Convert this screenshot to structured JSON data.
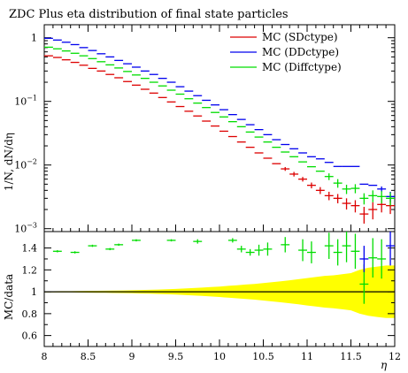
{
  "chart_data": [
    {
      "type": "scatter",
      "title": "ZDC Plus eta distribution of final state particles",
      "xlabel": "",
      "ylabel": "1/N, dN/dη",
      "yscale": "log",
      "ylim": [
        0.0009,
        1.6
      ],
      "y_ticks": [
        {
          "value": 0.001,
          "base": "10",
          "exp": "−3"
        },
        {
          "value": 0.01,
          "base": "10",
          "exp": "−2"
        },
        {
          "value": 0.1,
          "base": "10",
          "exp": "−1"
        },
        {
          "value": 1,
          "base": "1",
          "exp": ""
        }
      ],
      "legend_position": "top-right",
      "series": [
        {
          "name": "MC (SDctype)",
          "color": "#dd0000",
          "x": [
            8.05,
            8.15,
            8.25,
            8.35,
            8.45,
            8.55,
            8.65,
            8.75,
            8.85,
            8.95,
            9.05,
            9.15,
            9.25,
            9.35,
            9.45,
            9.55,
            9.65,
            9.75,
            9.85,
            9.95,
            10.05,
            10.15,
            10.25,
            10.35,
            10.45,
            10.55,
            10.65,
            10.75,
            10.85,
            10.95,
            11.05,
            11.15,
            11.25,
            11.35,
            11.45,
            11.55,
            11.65,
            11.75,
            11.85,
            11.95
          ],
          "y": [
            0.52,
            0.49,
            0.45,
            0.41,
            0.37,
            0.33,
            0.3,
            0.265,
            0.235,
            0.205,
            0.18,
            0.155,
            0.135,
            0.115,
            0.098,
            0.083,
            0.07,
            0.059,
            0.049,
            0.041,
            0.034,
            0.028,
            0.023,
            0.019,
            0.0155,
            0.0128,
            0.0105,
            0.0087,
            0.0072,
            0.006,
            0.0048,
            0.004,
            0.0033,
            0.003,
            0.0025,
            0.0023,
            0.0017,
            0.002,
            0.0024,
            0.0023
          ],
          "yerr": [
            0,
            0,
            0,
            0,
            0,
            0,
            0,
            0,
            0,
            0,
            0,
            0,
            0,
            0,
            0,
            0,
            0,
            0,
            0,
            0,
            0,
            0,
            0,
            0,
            0,
            0,
            0,
            0.0006,
            0.0006,
            0.0005,
            0.0005,
            0.0005,
            0.0005,
            0.0005,
            0.0005,
            0.0005,
            0.0005,
            0.0006,
            0.0006,
            0.0006
          ]
        },
        {
          "name": "MC (DDctype)",
          "color": "#0000ee",
          "x": [
            8.05,
            8.15,
            8.25,
            8.35,
            8.45,
            8.55,
            8.65,
            8.75,
            8.85,
            8.95,
            9.05,
            9.15,
            9.25,
            9.35,
            9.45,
            9.55,
            9.65,
            9.75,
            9.85,
            9.95,
            10.05,
            10.15,
            10.25,
            10.35,
            10.45,
            10.55,
            10.65,
            10.75,
            10.85,
            10.95,
            11.05,
            11.15,
            11.25,
            11.35,
            11.45,
            11.55,
            11.65,
            11.75,
            11.85,
            11.95
          ],
          "y": [
            0.98,
            0.92,
            0.85,
            0.78,
            0.7,
            0.63,
            0.56,
            0.5,
            0.44,
            0.39,
            0.345,
            0.3,
            0.265,
            0.23,
            0.2,
            0.17,
            0.145,
            0.123,
            0.104,
            0.088,
            0.074,
            0.062,
            0.052,
            0.043,
            0.036,
            0.03,
            0.025,
            0.021,
            0.018,
            0.0155,
            0.0135,
            0.0125,
            0.011,
            0.0095,
            0.0095,
            0.0095,
            0.005,
            0.0048,
            0.0042,
            0.0032
          ],
          "yerr": [
            0,
            0,
            0,
            0,
            0,
            0,
            0,
            0,
            0,
            0,
            0,
            0,
            0,
            0,
            0,
            0,
            0,
            0,
            0,
            0,
            0,
            0,
            0,
            0,
            0,
            0,
            0,
            0,
            0,
            0,
            0,
            0,
            0,
            0,
            0,
            0,
            0,
            0,
            0.0004,
            0.0006
          ]
        },
        {
          "name": "MC (Diffctype)",
          "color": "#00dd00",
          "x": [
            8.05,
            8.15,
            8.25,
            8.35,
            8.45,
            8.55,
            8.65,
            8.75,
            8.85,
            8.95,
            9.05,
            9.15,
            9.25,
            9.35,
            9.45,
            9.55,
            9.65,
            9.75,
            9.85,
            9.95,
            10.05,
            10.15,
            10.25,
            10.35,
            10.45,
            10.55,
            10.65,
            10.75,
            10.85,
            10.95,
            11.05,
            11.15,
            11.25,
            11.35,
            11.45,
            11.55,
            11.65,
            11.75,
            11.85,
            11.95
          ],
          "y": [
            0.71,
            0.67,
            0.62,
            0.57,
            0.52,
            0.47,
            0.42,
            0.375,
            0.335,
            0.295,
            0.26,
            0.23,
            0.2,
            0.175,
            0.15,
            0.13,
            0.11,
            0.094,
            0.08,
            0.067,
            0.057,
            0.048,
            0.04,
            0.033,
            0.0275,
            0.023,
            0.019,
            0.016,
            0.0135,
            0.0112,
            0.0094,
            0.008,
            0.0066,
            0.0052,
            0.0042,
            0.0043,
            0.003,
            0.0033,
            0.0032,
            0.003
          ],
          "yerr": [
            0,
            0,
            0,
            0,
            0,
            0,
            0,
            0,
            0,
            0,
            0,
            0,
            0,
            0,
            0,
            0,
            0,
            0,
            0,
            0,
            0,
            0,
            0,
            0,
            0,
            0,
            0,
            0,
            0,
            0,
            0,
            0,
            0.0008,
            0.0008,
            0.0007,
            0.0007,
            0.0006,
            0.0007,
            0.0007,
            0.0007
          ]
        }
      ]
    },
    {
      "type": "scatter",
      "title": "",
      "xlabel": "η",
      "ylabel": "MC/data",
      "xlim": [
        8,
        12
      ],
      "ylim": [
        0.5,
        1.55
      ],
      "x_ticks": [
        8,
        8.5,
        9,
        9.5,
        10,
        10.5,
        11,
        11.5,
        12
      ],
      "x_tick_labels": [
        "8",
        "8.5",
        "9",
        "9.5",
        "10",
        "10.5",
        "11",
        "11.5",
        "12"
      ],
      "y_ticks": [
        0.6,
        0.8,
        1,
        1.2,
        1.4
      ],
      "y_tick_labels": [
        "0.6",
        "0.8",
        "1",
        "1.2",
        "1.4"
      ],
      "reference_line": 1,
      "band_color": "#ffff00",
      "band_x": [
        8.0,
        8.1,
        8.2,
        8.3,
        8.4,
        8.5,
        8.6,
        8.7,
        8.8,
        8.9,
        9.0,
        9.1,
        9.2,
        9.3,
        9.4,
        9.5,
        9.6,
        9.7,
        9.8,
        9.9,
        10.0,
        10.1,
        10.2,
        10.3,
        10.4,
        10.5,
        10.6,
        10.7,
        10.8,
        10.9,
        11.0,
        11.1,
        11.2,
        11.3,
        11.4,
        11.5,
        11.6,
        11.7,
        11.8,
        11.9,
        12.0
      ],
      "band_half": [
        0.005,
        0.005,
        0.006,
        0.006,
        0.007,
        0.008,
        0.009,
        0.01,
        0.011,
        0.012,
        0.014,
        0.016,
        0.018,
        0.02,
        0.023,
        0.026,
        0.03,
        0.034,
        0.038,
        0.043,
        0.048,
        0.054,
        0.06,
        0.066,
        0.072,
        0.08,
        0.088,
        0.096,
        0.105,
        0.115,
        0.125,
        0.135,
        0.145,
        0.15,
        0.16,
        0.17,
        0.2,
        0.22,
        0.23,
        0.24,
        0.24
      ],
      "series": [
        {
          "name": "MC (Diffctype)",
          "color": "#00dd00",
          "x": [
            8.15,
            8.35,
            8.55,
            8.75,
            8.85,
            9.05,
            9.45,
            9.75,
            10.15,
            10.25,
            10.35,
            10.45,
            10.55,
            10.75,
            10.95,
            11.05,
            11.25,
            11.35,
            11.45,
            11.55,
            11.65,
            11.75,
            11.85
          ],
          "y": [
            1.37,
            1.36,
            1.42,
            1.39,
            1.43,
            1.47,
            1.47,
            1.46,
            1.47,
            1.39,
            1.36,
            1.38,
            1.39,
            1.43,
            1.38,
            1.36,
            1.42,
            1.36,
            1.42,
            1.37,
            1.07,
            1.31,
            1.3
          ],
          "yerr": [
            0.01,
            0.01,
            0.01,
            0.01,
            0.01,
            0.01,
            0.01,
            0.02,
            0.02,
            0.03,
            0.03,
            0.05,
            0.06,
            0.07,
            0.1,
            0.1,
            0.12,
            0.12,
            0.15,
            0.16,
            0.18,
            0.18,
            0.18
          ]
        },
        {
          "name": "MC (DDctype)",
          "color": "#0000ee",
          "x": [
            11.65,
            11.95
          ],
          "y": [
            1.3,
            1.42
          ],
          "yerr": [
            0.12,
            0.18
          ]
        }
      ]
    }
  ]
}
